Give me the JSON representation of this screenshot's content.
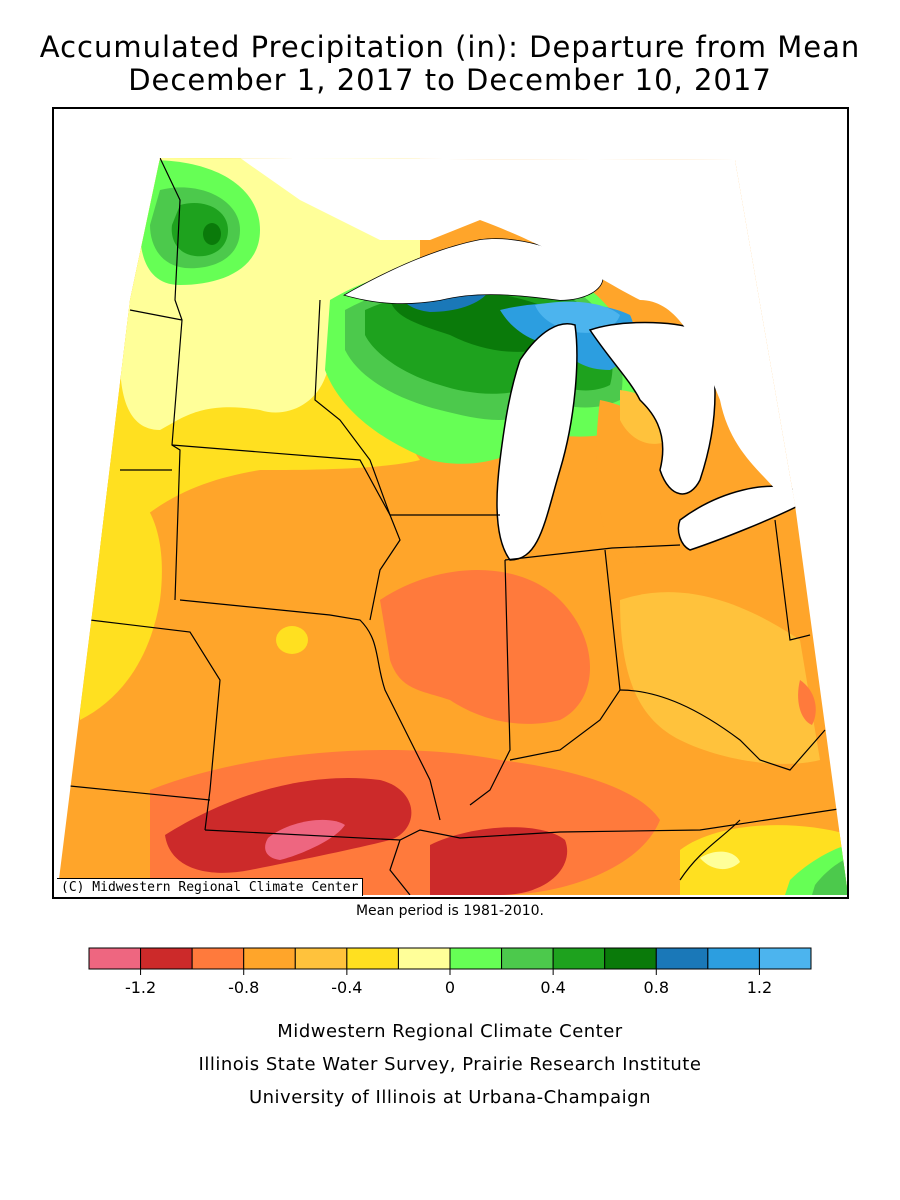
{
  "header": {
    "title_line1": "Accumulated Precipitation (in): Departure from Mean",
    "title_line2": "December 1, 2017 to December 10, 2017"
  },
  "map": {
    "credit": "(C) Midwestern Regional Climate Center",
    "mean_period_note": "Mean period is 1981-2010."
  },
  "legend": {
    "bins": [
      {
        "from": -1.4,
        "to": -1.2,
        "color": "#ee6680"
      },
      {
        "from": -1.2,
        "to": -1.0,
        "color": "#cc2a2a"
      },
      {
        "from": -1.0,
        "to": -0.8,
        "color": "#ff7a3c"
      },
      {
        "from": -0.8,
        "to": -0.6,
        "color": "#ffa52a"
      },
      {
        "from": -0.6,
        "to": -0.4,
        "color": "#ffc23c"
      },
      {
        "from": -0.4,
        "to": -0.2,
        "color": "#ffe020"
      },
      {
        "from": -0.2,
        "to": 0.0,
        "color": "#ffff99"
      },
      {
        "from": 0.0,
        "to": 0.2,
        "color": "#66ff55"
      },
      {
        "from": 0.2,
        "to": 0.4,
        "color": "#4cc94c"
      },
      {
        "from": 0.4,
        "to": 0.6,
        "color": "#1ea21e"
      },
      {
        "from": 0.6,
        "to": 0.8,
        "color": "#0a7a0a"
      },
      {
        "from": 0.8,
        "to": 1.0,
        "color": "#1a78b8"
      },
      {
        "from": 1.0,
        "to": 1.2,
        "color": "#2c9ee0"
      },
      {
        "from": 1.2,
        "to": 1.4,
        "color": "#4cb4ee"
      }
    ],
    "tick_labels": [
      "-1.2",
      "-0.8",
      "-0.4",
      "0",
      "0.4",
      "0.8",
      "1.2"
    ],
    "tick_values": [
      -1.2,
      -0.8,
      -0.4,
      0,
      0.4,
      0.8,
      1.2
    ]
  },
  "footer": {
    "line1": "Midwestern Regional Climate Center",
    "line2": "Illinois State Water Survey, Prairie Research Institute",
    "line3": "University of Illinois at Urbana-Champaign"
  }
}
